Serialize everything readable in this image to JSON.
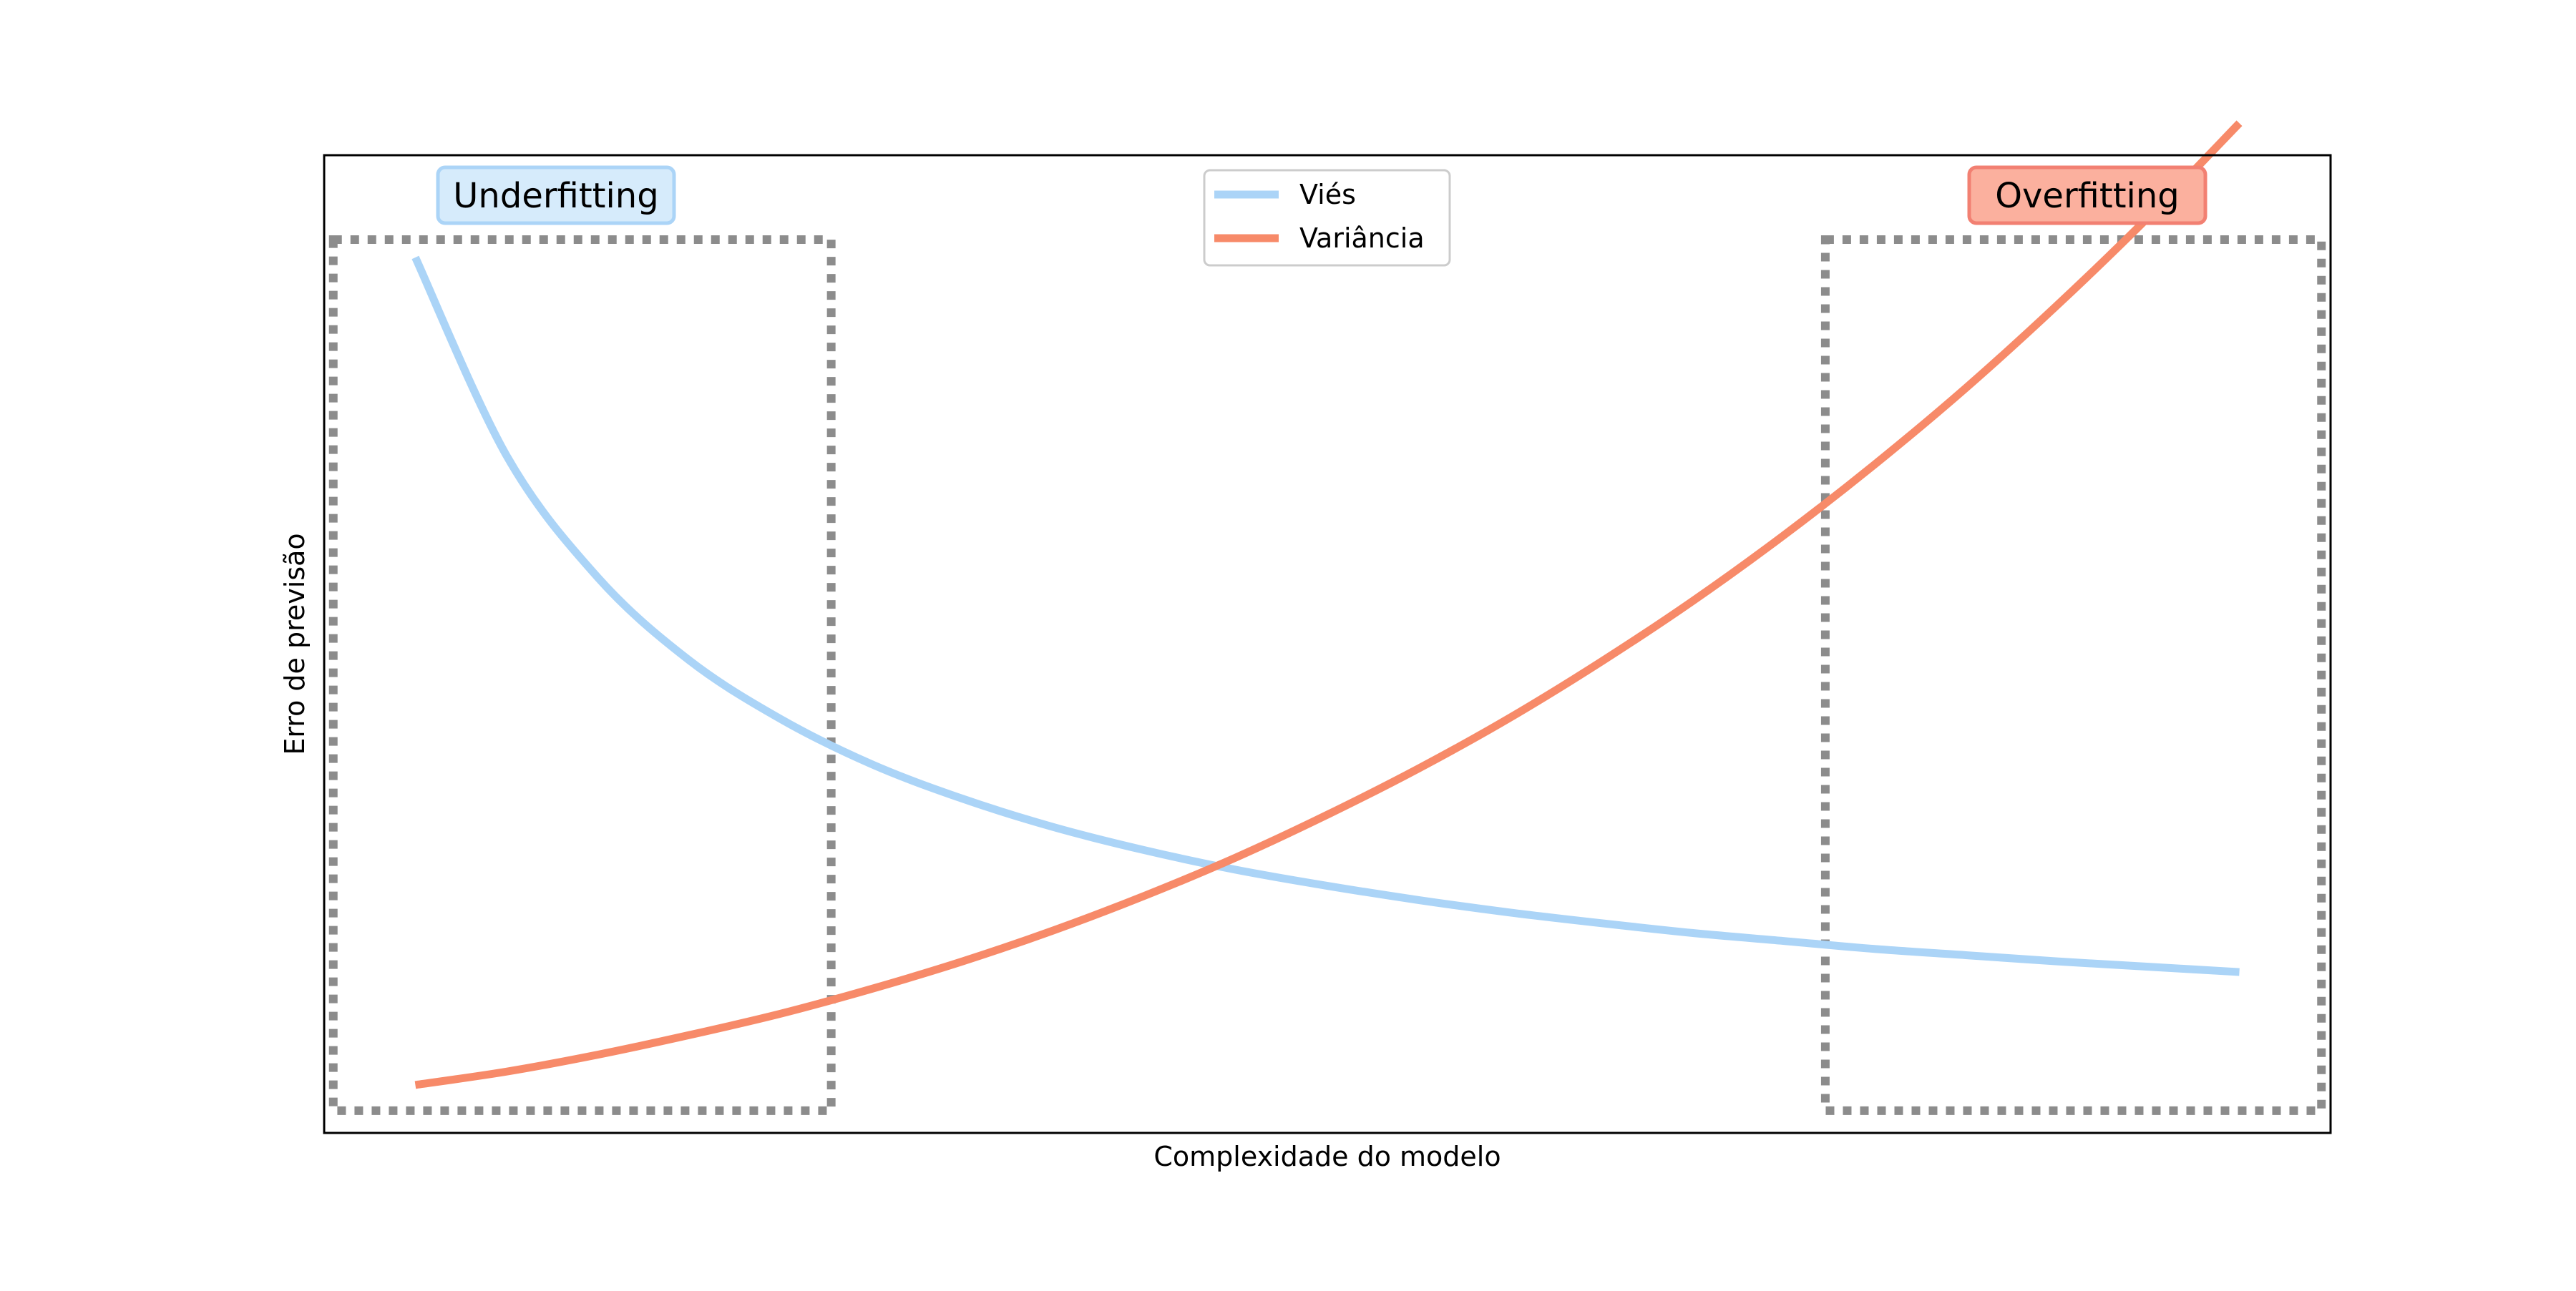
{
  "chart_data": {
    "type": "line",
    "xlabel": "Complexidade do modelo",
    "ylabel": "Erro de previsão",
    "xlim": [
      0,
      1.1
    ],
    "ylim": [
      0,
      1.1
    ],
    "grid": false,
    "xticks_visible": false,
    "yticks_visible": false,
    "legend": {
      "placement": "top-center"
    },
    "x": [
      0.05,
      0.1,
      0.15,
      0.2,
      0.25,
      0.3,
      0.35,
      0.4,
      0.45,
      0.5,
      0.55,
      0.6,
      0.65,
      0.7,
      0.75,
      0.8,
      0.85,
      0.9,
      0.95,
      1.0,
      1.05
    ],
    "series": [
      {
        "name": "Viés",
        "color": "#abd4f7",
        "values": [
          0.985,
          0.762,
          0.625,
          0.532,
          0.466,
          0.415,
          0.376,
          0.344,
          0.318,
          0.296,
          0.278,
          0.262,
          0.248,
          0.236,
          0.225,
          0.216,
          0.207,
          0.2,
          0.193,
          0.187,
          0.181
        ]
      },
      {
        "name": "Variância",
        "color": "#f78a69",
        "values": [
          0.054,
          0.069,
          0.088,
          0.11,
          0.134,
          0.162,
          0.193,
          0.228,
          0.267,
          0.31,
          0.358,
          0.41,
          0.467,
          0.53,
          0.598,
          0.672,
          0.752,
          0.838,
          0.931,
          1.03,
          1.136
        ]
      }
    ],
    "regions": [
      {
        "label": "Underfitting",
        "x_range": [
          0.005,
          0.278
        ],
        "y_range": [
          0.025,
          1.005
        ],
        "label_bg": "#d6ebfb",
        "label_border": "#abd4f7"
      },
      {
        "label": "Overfitting",
        "x_range": [
          0.823,
          1.095
        ],
        "y_range": [
          0.025,
          1.005
        ],
        "label_bg": "#fbb09e",
        "label_border": "#f28072"
      }
    ]
  }
}
